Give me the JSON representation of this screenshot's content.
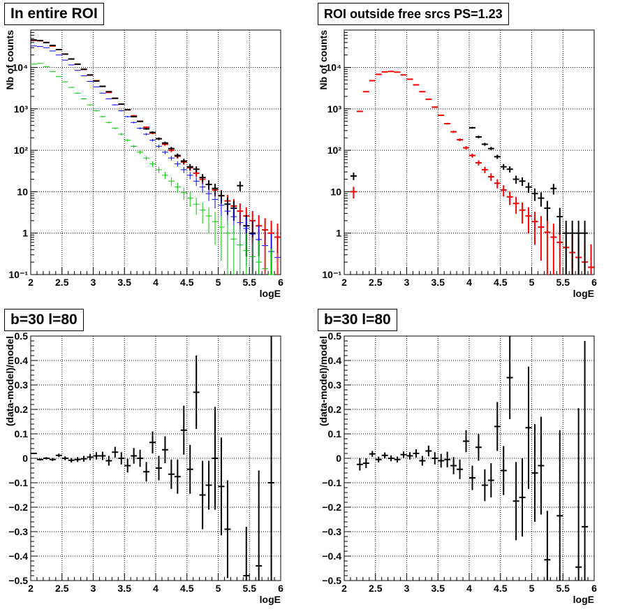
{
  "colors": {
    "data": "#000000",
    "model": "#ff0000",
    "blue_series": "#0000ff",
    "green_series": "#00cc00",
    "grid": "#000000"
  },
  "chart_data": [
    {
      "type": "scatter",
      "title": "In entire ROI",
      "xlabel": "logE",
      "ylabel": "Nb of counts",
      "xlim": [
        2,
        6
      ],
      "ylim": [
        0.1,
        80000
      ],
      "yscale": "log",
      "grid": true,
      "x_ticks": [
        "2",
        "2.5",
        "3",
        "3.5",
        "4",
        "4.5",
        "5",
        "5.5",
        "6"
      ],
      "y_ticks": [
        "10⁻¹",
        "1",
        "10",
        "10²",
        "10³",
        "10⁴"
      ],
      "bin_width": 0.1,
      "series": [
        {
          "color": "#ff0000",
          "x": [
            2.05,
            2.15,
            2.25,
            2.35,
            2.45,
            2.55,
            2.65,
            2.75,
            2.85,
            2.95,
            3.05,
            3.15,
            3.25,
            3.35,
            3.45,
            3.55,
            3.65,
            3.75,
            3.85,
            3.95,
            4.05,
            4.15,
            4.25,
            4.35,
            4.45,
            4.55,
            4.65,
            4.75,
            4.85,
            4.95,
            5.05,
            5.15,
            5.25,
            5.35,
            5.45,
            5.55,
            5.65,
            5.75,
            5.85,
            5.95
          ],
          "y": [
            45000,
            44000,
            40000,
            33000,
            27000,
            21000,
            16000,
            12000,
            9000,
            6500,
            4800,
            3500,
            2500,
            1800,
            1300,
            950,
            680,
            500,
            360,
            260,
            190,
            140,
            100,
            72,
            52,
            38,
            28,
            20,
            15,
            11,
            8,
            6,
            4.5,
            3.4,
            2.6,
            2,
            1.5,
            1.2,
            1,
            0.8
          ]
        },
        {
          "color": "#000000",
          "x": [
            2.05,
            2.15,
            2.25,
            2.35,
            2.45,
            2.55,
            2.65,
            2.75,
            2.85,
            2.95,
            3.05,
            3.15,
            3.25,
            3.35,
            3.45,
            3.55,
            3.65,
            3.75,
            3.85,
            3.95,
            4.05,
            4.15,
            4.25,
            4.35,
            4.45,
            4.55,
            4.65,
            4.75,
            4.85,
            4.95,
            5.05,
            5.15,
            5.25,
            5.35,
            5.45,
            5.55
          ],
          "y": [
            46000,
            44500,
            40000,
            34000,
            27000,
            21000,
            16000,
            12000,
            9000,
            6600,
            4700,
            3500,
            2600,
            1800,
            1300,
            950,
            650,
            500,
            330,
            270,
            190,
            150,
            110,
            75,
            55,
            40,
            35,
            22,
            15,
            12,
            8,
            5,
            4,
            14,
            1.5,
            1
          ]
        },
        {
          "color": "#0000ff",
          "x": [
            2.05,
            2.15,
            2.25,
            2.35,
            2.45,
            2.55,
            2.65,
            2.75,
            2.85,
            2.95,
            3.05,
            3.15,
            3.25,
            3.35,
            3.45,
            3.55,
            3.65,
            3.75,
            3.85,
            3.95,
            4.05,
            4.15,
            4.25,
            4.35,
            4.45,
            4.55,
            4.65,
            4.75,
            4.85,
            4.95,
            5.05,
            5.15,
            5.25,
            5.35,
            5.45,
            5.55,
            5.65,
            5.75,
            5.85,
            5.95
          ],
          "y": [
            33000,
            32000,
            30000,
            25000,
            20000,
            15000,
            11500,
            8500,
            6300,
            4600,
            3400,
            2400,
            1750,
            1250,
            900,
            650,
            470,
            340,
            245,
            175,
            125,
            90,
            65,
            47,
            34,
            25,
            18,
            13,
            9,
            6.5,
            4.7,
            3.4,
            2.5,
            1.8,
            1.3,
            0.95,
            0.7,
            0.5,
            0.36,
            0.26
          ]
        },
        {
          "color": "#00cc00",
          "x": [
            2.05,
            2.15,
            2.25,
            2.35,
            2.45,
            2.55,
            2.65,
            2.75,
            2.85,
            2.95,
            3.05,
            3.15,
            3.25,
            3.35,
            3.45,
            3.55,
            3.65,
            3.75,
            3.85,
            3.95,
            4.05,
            4.15,
            4.25,
            4.35,
            4.45,
            4.55,
            4.65,
            4.75,
            4.85,
            4.95,
            5.05,
            5.15,
            5.25,
            5.35,
            5.45,
            5.55,
            5.65,
            5.75,
            5.85,
            5.95
          ],
          "y": [
            12000,
            12500,
            10500,
            8000,
            6000,
            4500,
            3300,
            2400,
            1750,
            1250,
            900,
            650,
            470,
            340,
            245,
            175,
            125,
            90,
            65,
            47,
            34,
            25,
            18,
            13,
            9.5,
            7,
            5,
            3.6,
            2.6,
            1.9,
            1.4,
            1,
            0.72,
            0.52,
            0.38,
            0.27,
            0.2,
            0.14,
            0.1,
            0.07
          ]
        }
      ]
    },
    {
      "type": "scatter",
      "title": "ROI outside free srcs PS=1.23",
      "xlabel": "logE",
      "ylabel": "Nb of counts",
      "xlim": [
        2,
        6
      ],
      "ylim": [
        0.1,
        80000
      ],
      "yscale": "log",
      "grid": true,
      "x_ticks": [
        "2",
        "2.5",
        "3",
        "3.5",
        "4",
        "4.5",
        "5",
        "5.5",
        "6"
      ],
      "y_ticks": [
        "10⁻¹",
        "1",
        "10",
        "10²",
        "10³",
        "10⁴"
      ],
      "bin_width": 0.1,
      "series": [
        {
          "color": "#ff0000",
          "x": [
            2.15,
            2.25,
            2.35,
            2.45,
            2.55,
            2.65,
            2.75,
            2.85,
            2.95,
            3.05,
            3.15,
            3.25,
            3.35,
            3.45,
            3.55,
            3.65,
            3.75,
            3.85,
            3.95,
            4.05,
            4.15,
            4.25,
            4.35,
            4.45,
            4.55,
            4.65,
            4.75,
            4.85,
            4.95,
            5.05,
            5.15,
            5.25,
            5.35,
            5.45,
            5.55,
            5.65,
            5.75,
            5.85,
            5.95
          ],
          "y": [
            10,
            870,
            2600,
            4800,
            6800,
            7800,
            8000,
            7700,
            6600,
            5200,
            3800,
            2600,
            1700,
            1100,
            700,
            440,
            280,
            180,
            115,
            75,
            50,
            34,
            23,
            16,
            11,
            7.5,
            5.2,
            3.6,
            2.6,
            1.9,
            1.4,
            1.05,
            0.8,
            0.6,
            0.45,
            0.34,
            0.26,
            0.2,
            0.15
          ]
        },
        {
          "color": "#000000",
          "x": [
            2.15,
            4.05,
            4.15,
            4.25,
            4.35,
            4.45,
            4.55,
            4.65,
            4.75,
            4.85,
            4.95,
            5.05,
            5.15,
            5.25,
            5.35,
            5.45,
            5.55,
            5.65,
            5.75,
            5.85
          ],
          "y": [
            24,
            350,
            210,
            140,
            110,
            70,
            40,
            35,
            20,
            18,
            13,
            9,
            7,
            4,
            12,
            2.5,
            1,
            1,
            1,
            1
          ]
        }
      ]
    },
    {
      "type": "scatter",
      "title": "b=30 l=80",
      "xlabel": "logE",
      "ylabel": "(data-model)/model",
      "xlim": [
        2,
        6
      ],
      "ylim": [
        -0.5,
        0.5
      ],
      "grid": true,
      "x_ticks": [
        "2",
        "2.5",
        "3",
        "3.5",
        "4",
        "4.5",
        "5",
        "5.5",
        "6"
      ],
      "y_ticks": [
        "−0.5",
        "−0.4",
        "−0.3",
        "−0.2",
        "−0.1",
        "0",
        "0.1",
        "0.2",
        "0.3",
        "0.4",
        "0.5"
      ],
      "bin_width": 0.1,
      "series": [
        {
          "color": "#000000",
          "x": [
            2.05,
            2.15,
            2.25,
            2.35,
            2.45,
            2.55,
            2.65,
            2.75,
            2.85,
            2.95,
            3.05,
            3.15,
            3.25,
            3.35,
            3.45,
            3.55,
            3.65,
            3.75,
            3.85,
            3.95,
            4.05,
            4.15,
            4.25,
            4.35,
            4.45,
            4.55,
            4.65,
            4.75,
            4.85,
            4.95,
            5.05,
            5.15,
            5.45,
            5.65,
            5.85
          ],
          "y": [
            0.02,
            -0.005,
            0.0,
            -0.005,
            0.012,
            0.0,
            -0.008,
            -0.005,
            -0.002,
            0.005,
            0.01,
            0.01,
            -0.01,
            0.025,
            0.0,
            -0.03,
            0.01,
            0.0,
            -0.055,
            0.065,
            -0.04,
            0.035,
            -0.065,
            -0.075,
            0.115,
            -0.045,
            0.27,
            -0.15,
            -0.11,
            0.0,
            -0.115,
            -0.29,
            -0.48,
            -0.44,
            -0.1
          ],
          "err": [
            0.003,
            0.004,
            0.005,
            0.006,
            0.007,
            0.008,
            0.009,
            0.01,
            0.012,
            0.013,
            0.015,
            0.017,
            0.02,
            0.022,
            0.025,
            0.028,
            0.032,
            0.035,
            0.04,
            0.045,
            0.05,
            0.055,
            0.06,
            0.07,
            0.1,
            0.1,
            0.15,
            0.14,
            0.1,
            0.21,
            0.2,
            0.2,
            0.2,
            0.39,
            0.6
          ]
        }
      ]
    },
    {
      "type": "scatter",
      "title": "b=30 l=80",
      "xlabel": "logE",
      "ylabel": "(data-model)/model",
      "xlim": [
        2,
        6
      ],
      "ylim": [
        -0.5,
        0.5
      ],
      "grid": true,
      "x_ticks": [
        "2",
        "2.5",
        "3",
        "3.5",
        "4",
        "4.5",
        "5",
        "5.5",
        "6"
      ],
      "y_ticks": [
        "−0.5",
        "−0.4",
        "−0.3",
        "−0.2",
        "−0.1",
        "0",
        "0.1",
        "0.2",
        "0.3",
        "0.4",
        "0.5"
      ],
      "bin_width": 0.1,
      "series": [
        {
          "color": "#000000",
          "x": [
            2.25,
            2.35,
            2.45,
            2.55,
            2.65,
            2.75,
            2.85,
            2.95,
            3.05,
            3.15,
            3.25,
            3.35,
            3.45,
            3.55,
            3.65,
            3.75,
            3.85,
            3.95,
            4.05,
            4.15,
            4.25,
            4.35,
            4.45,
            4.55,
            4.65,
            4.75,
            4.85,
            4.95,
            5.05,
            5.15,
            5.25,
            5.45,
            5.75,
            5.85
          ],
          "y": [
            -0.025,
            -0.02,
            0.018,
            -0.005,
            0.012,
            0.0,
            -0.005,
            0.015,
            0.01,
            0.02,
            -0.01,
            0.03,
            0.0,
            -0.01,
            -0.005,
            -0.03,
            -0.045,
            0.07,
            -0.08,
            0.045,
            -0.11,
            -0.09,
            0.13,
            -0.05,
            0.33,
            -0.175,
            -0.16,
            0.125,
            -0.06,
            -0.03,
            -0.415,
            -0.235,
            -0.445,
            -0.28
          ],
          "err": [
            0.025,
            0.02,
            0.012,
            0.012,
            0.012,
            0.012,
            0.012,
            0.013,
            0.015,
            0.017,
            0.02,
            0.022,
            0.025,
            0.028,
            0.032,
            0.035,
            0.04,
            0.045,
            0.05,
            0.055,
            0.065,
            0.07,
            0.1,
            0.1,
            0.17,
            0.16,
            0.16,
            0.25,
            0.2,
            0.2,
            0.2,
            0.35,
            0.65,
            0.76
          ]
        }
      ]
    }
  ]
}
